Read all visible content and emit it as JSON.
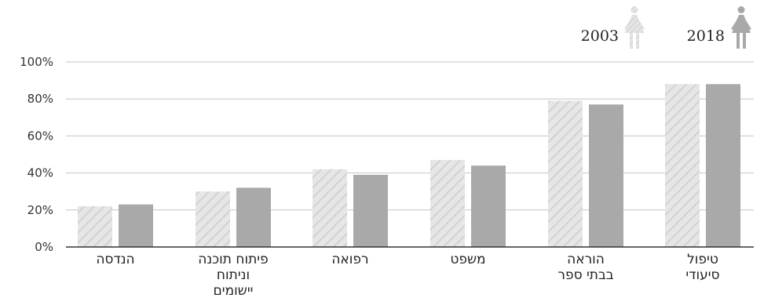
{
  "chart_data": {
    "type": "bar",
    "categories": [
      [
        "הנדסה"
      ],
      [
        "פיתוח תוכנה",
        "וניתוח",
        "יישומים"
      ],
      [
        "רפואה"
      ],
      [
        "משפט"
      ],
      [
        "הוראה",
        "בבתי ספר"
      ],
      [
        "טיפול",
        "סיעודי"
      ]
    ],
    "series": [
      {
        "name": "2003",
        "values": [
          22,
          30,
          42,
          47,
          79,
          88
        ],
        "color": "#e3e3e3",
        "pattern": "diagonal-hatch"
      },
      {
        "name": "2018",
        "values": [
          23,
          32,
          39,
          44,
          77,
          88
        ],
        "color": "#a9a9a9"
      }
    ],
    "ylim": [
      0,
      100
    ],
    "yticks": [
      "0%",
      "20%",
      "40%",
      "60%",
      "80%",
      "100%"
    ],
    "yticks_values": [
      0,
      20,
      40,
      60,
      80,
      100
    ],
    "grid": true,
    "legend": {
      "placement": "top-right",
      "icon": "woman-icon",
      "items": [
        "2003",
        "2018"
      ]
    }
  }
}
